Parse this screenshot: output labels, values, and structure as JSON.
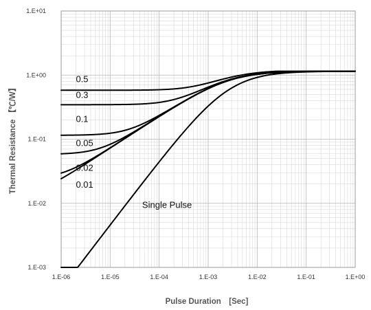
{
  "chart_data": {
    "type": "line",
    "xlabel": "Pulse Duration　[Sec]",
    "ylabel": "Thermal Resistance 【℃/W】",
    "xscale": "log",
    "yscale": "log",
    "xlim": [
      1e-06,
      1
    ],
    "ylim": [
      0.001,
      10
    ],
    "grid": true,
    "x_tick_labels": [
      "1.E-06",
      "1.E-05",
      "1.E-04",
      "1.E-03",
      "1.E-02",
      "1.E-01",
      "1.E+00"
    ],
    "y_tick_labels": [
      "1.E-03",
      "1.E-02",
      "1.E-01",
      "1.E+00",
      "1.E+01"
    ],
    "steady_state_value": 1.15,
    "series": [
      {
        "name": "0.5",
        "duty": 0.5,
        "low_value": 0.58,
        "label_at": [
          2e-06,
          0.78
        ]
      },
      {
        "name": "0.3",
        "duty": 0.3,
        "low_value": 0.345,
        "label_at": [
          2e-06,
          0.44
        ]
      },
      {
        "name": "0.1",
        "duty": 0.1,
        "low_value": 0.115,
        "label_at": [
          2e-06,
          0.185
        ]
      },
      {
        "name": "0.05",
        "duty": 0.05,
        "low_value": 0.058,
        "label_at": [
          2e-06,
          0.078
        ]
      },
      {
        "name": "0.02",
        "duty": 0.02,
        "low_value": 0.024,
        "label_at": [
          2e-06,
          0.032
        ]
      },
      {
        "name": "0.01",
        "duty": 0.01,
        "low_value": 0.0125,
        "label_at": [
          2e-06,
          0.0175
        ]
      },
      {
        "name": "Single Pulse",
        "duty": 0,
        "low_value": 0.001,
        "label_at": [
          4.5e-05,
          0.0085
        ]
      }
    ]
  }
}
